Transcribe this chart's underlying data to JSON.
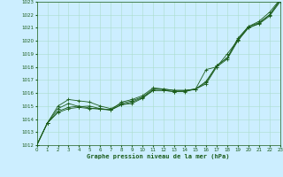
{
  "xlabel": "Graphe pression niveau de la mer (hPa)",
  "ylim": [
    1012,
    1023
  ],
  "xlim": [
    0,
    23
  ],
  "yticks": [
    1012,
    1013,
    1014,
    1015,
    1016,
    1017,
    1018,
    1019,
    1020,
    1021,
    1022,
    1023
  ],
  "xticks": [
    0,
    1,
    2,
    3,
    4,
    5,
    6,
    7,
    8,
    9,
    10,
    11,
    12,
    13,
    14,
    15,
    16,
    17,
    18,
    19,
    20,
    21,
    22,
    23
  ],
  "bg_color": "#cceeff",
  "grid_color": "#aaddcc",
  "line_color": "#1a5c1a",
  "series": [
    [
      1012.0,
      1013.7,
      1014.5,
      1014.8,
      1014.9,
      1014.8,
      1014.8,
      1014.7,
      1015.1,
      1015.2,
      1015.6,
      1016.2,
      1016.2,
      1016.1,
      1016.1,
      1016.3,
      1016.7,
      1018.0,
      1018.6,
      1020.0,
      1021.0,
      1021.3,
      1021.9,
      1023.0
    ],
    [
      1012.0,
      1013.7,
      1014.8,
      1015.2,
      1014.95,
      1015.0,
      1014.8,
      1014.7,
      1015.3,
      1015.5,
      1015.8,
      1016.4,
      1016.3,
      1016.2,
      1016.2,
      1016.3,
      1016.9,
      1018.1,
      1018.7,
      1020.1,
      1021.1,
      1021.4,
      1022.0,
      1023.1
    ],
    [
      1012.0,
      1013.7,
      1015.0,
      1015.5,
      1015.4,
      1015.3,
      1015.0,
      1014.8,
      1015.2,
      1015.4,
      1015.7,
      1016.3,
      1016.3,
      1016.2,
      1016.2,
      1016.3,
      1016.8,
      1018.1,
      1018.7,
      1020.2,
      1021.1,
      1021.5,
      1022.2,
      1023.2
    ],
    [
      1012.0,
      1013.7,
      1014.6,
      1014.9,
      1015.0,
      1014.85,
      1014.75,
      1014.7,
      1015.1,
      1015.3,
      1015.65,
      1016.2,
      1016.2,
      1016.1,
      1016.15,
      1016.3,
      1017.8,
      1018.0,
      1019.0,
      1020.05,
      1021.0,
      1021.35,
      1022.0,
      1023.15
    ]
  ]
}
